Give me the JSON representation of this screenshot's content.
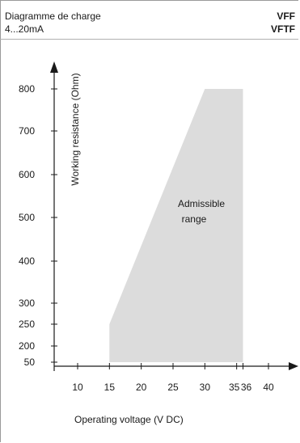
{
  "header": {
    "title": "Diagramme de charge",
    "range": "4...20mA",
    "model_1": "VFF",
    "model_2": "VFTF"
  },
  "chart_data": {
    "type": "area",
    "xlabel": "Operating voltage  (V DC)",
    "ylabel": "Working resistance  (Ohm)",
    "x_ticks": [
      10,
      15,
      20,
      25,
      30,
      35,
      36,
      40
    ],
    "y_ticks": [
      50,
      200,
      250,
      300,
      400,
      500,
      600,
      700,
      800
    ],
    "xlim": [
      6,
      44
    ],
    "region": {
      "label_line1": "Admissible",
      "label_line2": "range",
      "color": "#dcdcdc",
      "polygon": [
        [
          15,
          50
        ],
        [
          15,
          250
        ],
        [
          30,
          800
        ],
        [
          36,
          800
        ],
        [
          36,
          50
        ]
      ]
    },
    "grid": false
  }
}
